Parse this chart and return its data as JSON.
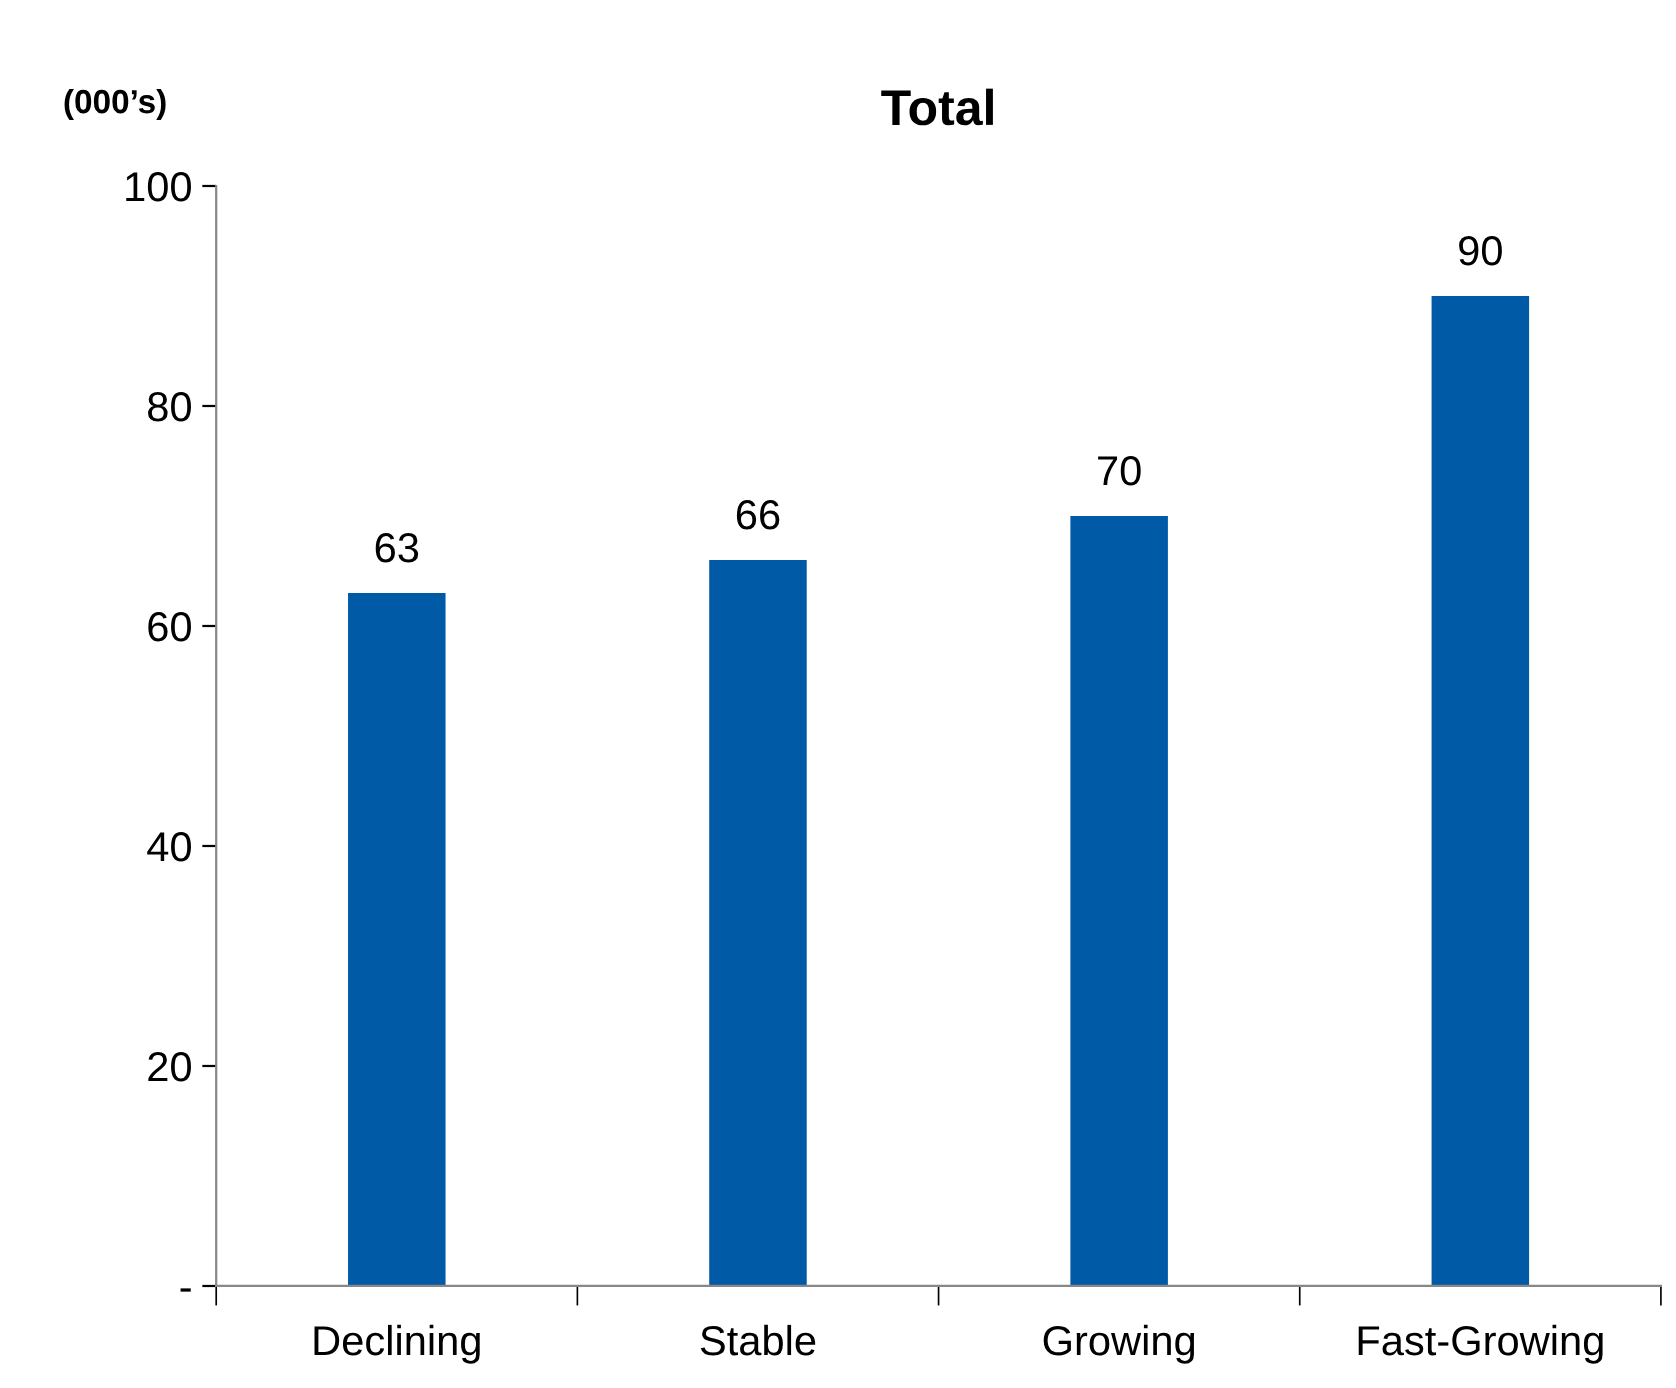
{
  "chart_data": {
    "type": "bar",
    "title": "Total",
    "ylabel": "(000’s)",
    "categories": [
      "Declining",
      "Stable",
      "Growing",
      "Fast-Growing"
    ],
    "values": [
      63,
      66,
      70,
      90
    ],
    "color": "#005aa5",
    "ylim": [
      0,
      100
    ],
    "yticks": [
      {
        "value": 0,
        "label": "-"
      },
      20,
      40,
      60,
      80,
      100
    ],
    "data_labels": true,
    "grid": false,
    "legend": false
  }
}
